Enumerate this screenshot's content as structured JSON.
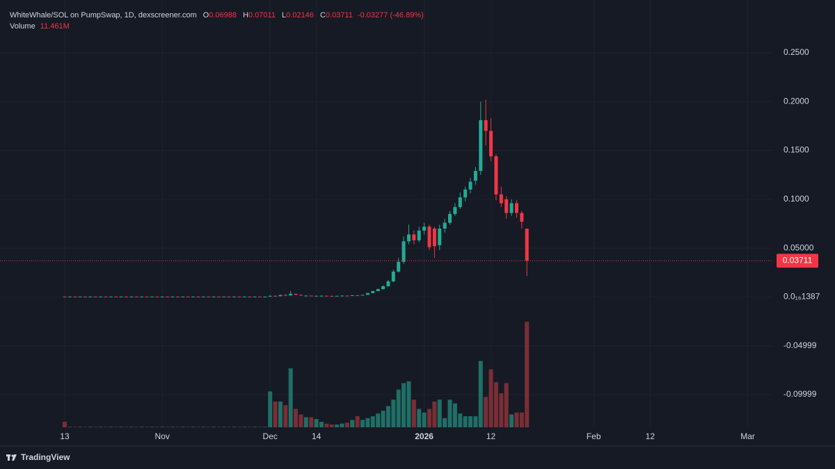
{
  "chart_data": {
    "type": "candlestick",
    "symbol_title": "WhiteWhale/SOL on PumpSwap, 1D, dexscreener.com",
    "ohlc_labels": {
      "open": "O",
      "high": "H",
      "low": "L",
      "close": "C"
    },
    "change": -0.03277,
    "change_percent": {
      "value": -46.89,
      "label": "(-46.89%)"
    },
    "volume_title": "Volume",
    "volume_last": {
      "value": 11.461,
      "label": "11.461M"
    },
    "brand": "TradingView",
    "up_color": "#22ab94",
    "down_color": "#f23645",
    "volume_up_color": "#1f6f66",
    "volume_down_color": "#7a2e36",
    "grid": true,
    "ylim": [
      -0.1334,
      0.304
    ],
    "yticks": [
      {
        "value": 0.25,
        "label": "0.2500"
      },
      {
        "value": 0.2,
        "label": "0.2000"
      },
      {
        "value": 0.15,
        "label": "0.1500"
      },
      {
        "value": 0.1,
        "label": "0.1000"
      },
      {
        "value": 0.05,
        "label": "0.05000"
      },
      {
        "value": 1.387e-17,
        "label": "0.0₁₆1387"
      },
      -0.04999,
      -0.09999
    ],
    "volume_lim": [
      0,
      46.4
    ],
    "xlim": [
      -12.6,
      137.8
    ],
    "xticks": [
      {
        "value": 0,
        "label": "13"
      },
      {
        "value": 19,
        "label": "Nov"
      },
      {
        "value": 40,
        "label": "Dec"
      },
      {
        "value": 49,
        "label": "14"
      },
      {
        "value": 70,
        "label": "2026"
      },
      {
        "value": 83,
        "label": "12"
      },
      {
        "value": 103,
        "label": "Feb"
      },
      {
        "value": 114,
        "label": "12"
      },
      {
        "value": 133,
        "label": "Mar"
      }
    ],
    "open": [
      0.0004,
      0.0003,
      0.0004,
      0.0003,
      0.0004,
      0.0003,
      0.0004,
      0.0003,
      0.0004,
      0.0003,
      0.0004,
      0.0003,
      0.0004,
      0.0003,
      0.0004,
      0.0003,
      0.0004,
      0.0003,
      0.0004,
      0.0003,
      0.0004,
      0.0003,
      0.0004,
      0.0003,
      0.0004,
      0.0003,
      0.0004,
      0.0003,
      0.0004,
      0.0003,
      0.0004,
      0.0003,
      0.0004,
      0.0003,
      0.0004,
      0.0003,
      0.0004,
      0.0003,
      0.0004,
      0.0003,
      0.0004,
      0.0012,
      0.0008,
      0.002,
      0.0016,
      0.0032,
      0.0022,
      0.0012,
      0.0014,
      0.001,
      0.0012,
      0.0013,
      0.0011,
      0.001,
      0.0012,
      0.0014,
      0.0012,
      0.0018,
      0.0016,
      0.0022,
      0.004,
      0.006,
      0.008,
      0.011,
      0.016,
      0.026,
      0.036,
      0.057,
      0.064,
      0.058,
      0.068,
      0.072,
      0.07,
      0.053,
      0.07,
      0.076,
      0.085,
      0.092,
      0.102,
      0.11,
      0.119,
      0.129,
      0.181,
      0.17,
      0.144,
      0.105,
      0.1,
      0.086,
      0.096,
      0.086,
      0.06988
    ],
    "close": [
      0.0003,
      0.0004,
      0.0003,
      0.0004,
      0.0003,
      0.0004,
      0.0003,
      0.0004,
      0.0003,
      0.0004,
      0.0003,
      0.0004,
      0.0003,
      0.0004,
      0.0003,
      0.0004,
      0.0003,
      0.0004,
      0.0003,
      0.0004,
      0.0003,
      0.0004,
      0.0003,
      0.0004,
      0.0003,
      0.0004,
      0.0003,
      0.0004,
      0.0003,
      0.0004,
      0.0003,
      0.0004,
      0.0003,
      0.0004,
      0.0003,
      0.0004,
      0.0003,
      0.0004,
      0.0003,
      0.0004,
      0.0012,
      0.0008,
      0.002,
      0.0016,
      0.0032,
      0.0022,
      0.0015,
      0.0014,
      0.001,
      0.0012,
      0.0013,
      0.0011,
      0.001,
      0.0012,
      0.0014,
      0.0012,
      0.0018,
      0.0016,
      0.0022,
      0.004,
      0.006,
      0.008,
      0.011,
      0.016,
      0.026,
      0.036,
      0.057,
      0.064,
      0.058,
      0.068,
      0.072,
      0.051,
      0.052,
      0.07,
      0.076,
      0.085,
      0.092,
      0.102,
      0.11,
      0.118,
      0.129,
      0.181,
      0.17,
      0.144,
      0.105,
      0.096,
      0.086,
      0.096,
      0.086,
      0.077,
      0.03711
    ],
    "high": [
      0.0005,
      0.0005,
      0.0005,
      0.0005,
      0.0005,
      0.0005,
      0.0005,
      0.0005,
      0.0005,
      0.0005,
      0.0005,
      0.0005,
      0.0005,
      0.0005,
      0.0005,
      0.0005,
      0.0005,
      0.0005,
      0.0005,
      0.0005,
      0.0005,
      0.0005,
      0.0005,
      0.0005,
      0.0005,
      0.0005,
      0.0005,
      0.0005,
      0.0005,
      0.0005,
      0.0005,
      0.0005,
      0.0005,
      0.0005,
      0.0005,
      0.0005,
      0.0005,
      0.0005,
      0.0005,
      0.0005,
      0.0016,
      0.0015,
      0.0026,
      0.003,
      0.006,
      0.0035,
      0.0024,
      0.0016,
      0.0015,
      0.0014,
      0.0015,
      0.0014,
      0.0012,
      0.0013,
      0.0016,
      0.0015,
      0.002,
      0.0021,
      0.0024,
      0.0042,
      0.0065,
      0.0085,
      0.012,
      0.0175,
      0.028,
      0.04,
      0.062,
      0.074,
      0.068,
      0.072,
      0.076,
      0.074,
      0.072,
      0.074,
      0.08,
      0.088,
      0.096,
      0.107,
      0.113,
      0.122,
      0.133,
      0.2,
      0.202,
      0.183,
      0.146,
      0.113,
      0.103,
      0.1,
      0.099,
      0.088,
      0.07011
    ],
    "low": [
      0.0002,
      0.0002,
      0.0002,
      0.0002,
      0.0002,
      0.0002,
      0.0002,
      0.0002,
      0.0002,
      0.0002,
      0.0002,
      0.0002,
      0.0002,
      0.0002,
      0.0002,
      0.0002,
      0.0002,
      0.0002,
      0.0002,
      0.0002,
      0.0002,
      0.0002,
      0.0002,
      0.0002,
      0.0002,
      0.0002,
      0.0002,
      0.0002,
      0.0002,
      0.0002,
      0.0002,
      0.0002,
      0.0002,
      0.0002,
      0.0002,
      0.0002,
      0.0002,
      0.0002,
      0.0002,
      0.0002,
      0.0003,
      0.0006,
      0.0007,
      0.0014,
      0.0015,
      0.002,
      0.0012,
      0.001,
      0.0009,
      0.0009,
      0.0011,
      0.001,
      0.0009,
      0.0009,
      0.0011,
      0.0011,
      0.0011,
      0.0014,
      0.0015,
      0.0021,
      0.0038,
      0.0058,
      0.0078,
      0.0105,
      0.015,
      0.025,
      0.034,
      0.054,
      0.054,
      0.056,
      0.064,
      0.048,
      0.04,
      0.048,
      0.066,
      0.074,
      0.083,
      0.09,
      0.098,
      0.106,
      0.115,
      0.125,
      0.155,
      0.139,
      0.099,
      0.092,
      0.08,
      0.083,
      0.081,
      0.07,
      0.02146
    ],
    "volume": [
      0.6,
      0.05,
      0.05,
      0.05,
      0.05,
      0.05,
      0.05,
      0.05,
      0.05,
      0.05,
      0.05,
      0.05,
      0.05,
      0.05,
      0.05,
      0.05,
      0.05,
      0.05,
      0.05,
      0.05,
      0.05,
      0.05,
      0.05,
      0.05,
      0.05,
      0.05,
      0.05,
      0.05,
      0.05,
      0.05,
      0.05,
      0.05,
      0.05,
      0.05,
      0.05,
      0.05,
      0.05,
      0.05,
      0.05,
      0.05,
      3.9,
      2.8,
      2.8,
      2.4,
      6.4,
      2.0,
      1.4,
      1.1,
      1.1,
      0.9,
      0.6,
      0.4,
      0.3,
      0.3,
      0.4,
      0.5,
      0.8,
      1.2,
      0.8,
      1.0,
      1.2,
      1.5,
      1.8,
      2.3,
      3.0,
      4.1,
      4.8,
      5.0,
      3.0,
      2.0,
      1.6,
      2.0,
      2.8,
      3.0,
      1.0,
      3.0,
      2.6,
      1.5,
      1.2,
      1.2,
      1.2,
      7.2,
      3.3,
      6.3,
      4.9,
      3.7,
      4.8,
      1.4,
      1.6,
      1.6,
      11.461
    ]
  }
}
